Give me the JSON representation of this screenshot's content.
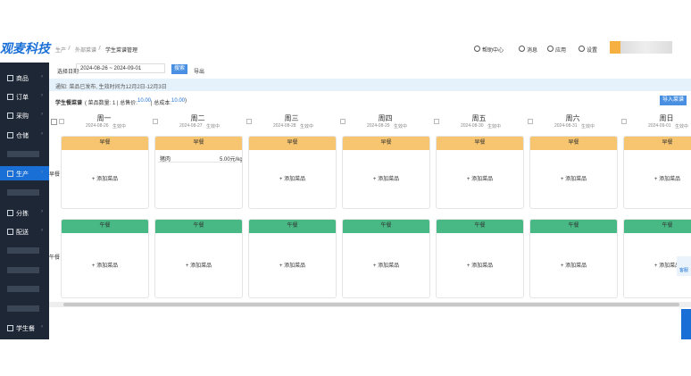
{
  "header": {
    "logo": "观麦科技",
    "breadcrumb": [
      "生产",
      "外部菜谱",
      "学生菜谱管理"
    ],
    "actions": [
      "帮助中心",
      "消息",
      "应用",
      "设置"
    ]
  },
  "sidebar": {
    "items": [
      "商品",
      "订单",
      "采购",
      "仓储",
      "生产",
      "分拣",
      "配送",
      "学生餐"
    ],
    "active": "生产"
  },
  "filter": {
    "label": "选择日期:",
    "range": "2024-08-26 ~ 2024-09-01",
    "search": "搜索",
    "export": "导出"
  },
  "notice": "通知: 菜品已发布, 生效时间为12月2日-12月3日",
  "summary": {
    "title": "学生餐菜谱",
    "parts": [
      "( 菜品数量: 1 | 总售价: ",
      "10.00",
      " | 总成本: ",
      "10.00",
      " )"
    ]
  },
  "import_button": "导入菜谱",
  "days": [
    {
      "name": "周一",
      "date": "2024-08-26",
      "status": "生效中"
    },
    {
      "name": "周二",
      "date": "2024-08-27",
      "status": "生效中"
    },
    {
      "name": "周三",
      "date": "2024-08-28",
      "status": "生效中"
    },
    {
      "name": "周四",
      "date": "2024-08-29",
      "status": "生效中"
    },
    {
      "name": "周五",
      "date": "2024-08-30",
      "status": "生效中"
    },
    {
      "name": "周六",
      "date": "2024-08-31",
      "status": "生效中"
    },
    {
      "name": "周日",
      "date": "2024-09-01",
      "status": "生效中"
    }
  ],
  "meals": [
    {
      "name": "早餐",
      "cells": [
        {
          "add": "+ 添加菜品"
        },
        {
          "dish": "猪肉",
          "price": "5.00元/kg"
        },
        {
          "add": "+ 添加菜品"
        },
        {
          "add": "+ 添加菜品"
        },
        {
          "add": "+ 添加菜品"
        },
        {
          "add": "+ 添加菜品"
        },
        {
          "add": "+ 添加菜品"
        }
      ]
    },
    {
      "name": "午餐",
      "cells": [
        {
          "add": "+ 添加菜品"
        },
        {
          "add": "+ 添加菜品"
        },
        {
          "add": "+ 添加菜品"
        },
        {
          "add": "+ 添加菜品"
        },
        {
          "add": "+ 添加菜品"
        },
        {
          "add": "+ 添加菜品"
        },
        {
          "add": "+ 添加菜品"
        }
      ]
    }
  ],
  "float": {
    "service": "客服"
  }
}
